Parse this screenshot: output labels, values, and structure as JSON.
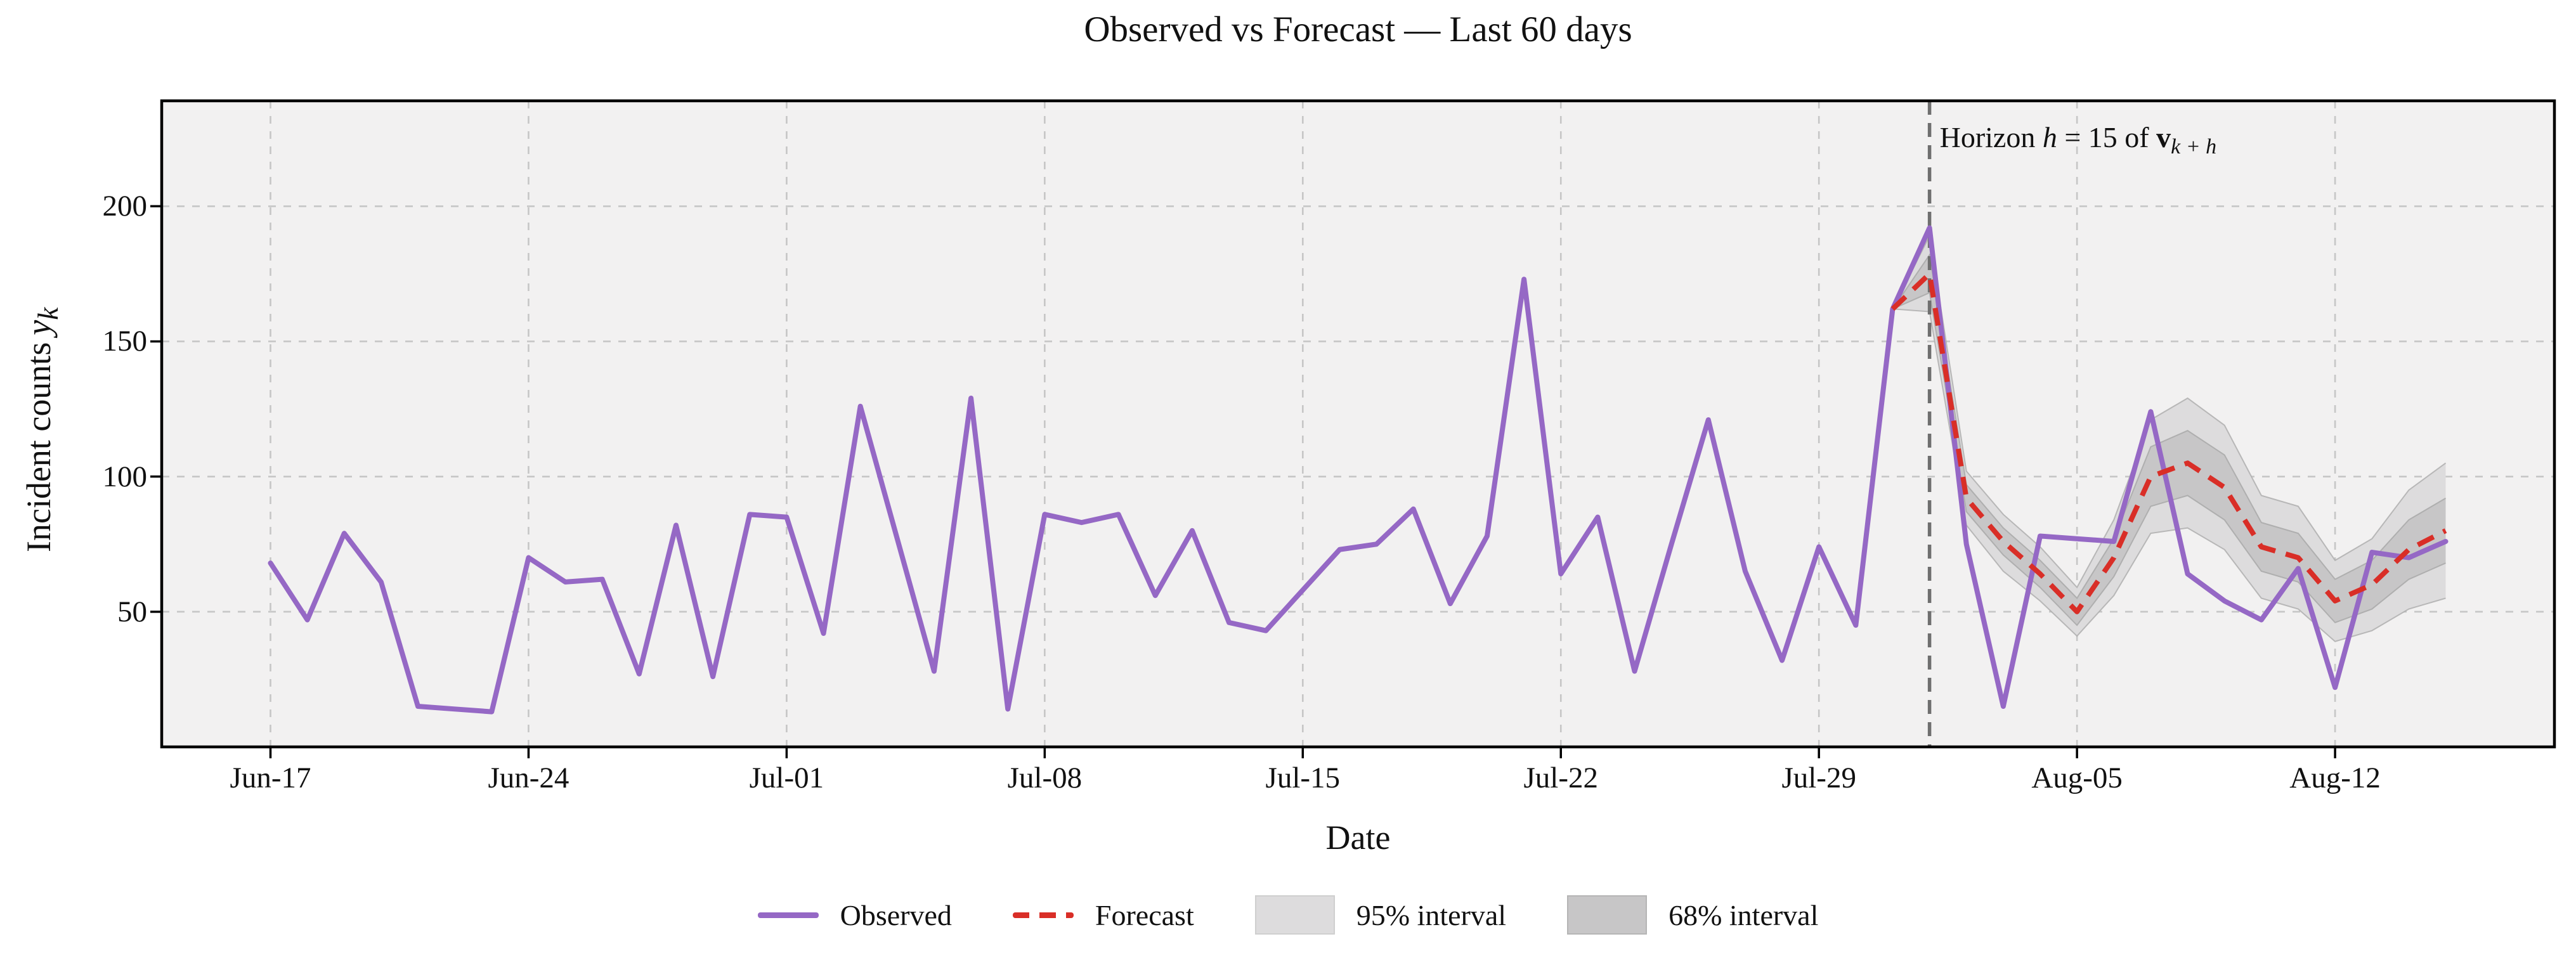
{
  "title": "Observed vs Forecast — Last 60 days",
  "xlabel": "Date",
  "ylabel": {
    "text": "Incident counts",
    "var": "y",
    "sub": "k"
  },
  "annotation": {
    "p1": "Horizon ",
    "p2": "h",
    "p3": " = 15 of ",
    "p4": "v",
    "p5": "k + h"
  },
  "legend": [
    {
      "label": "Observed",
      "swatch": "line-solid"
    },
    {
      "label": "Forecast",
      "swatch": "line-dashed"
    },
    {
      "label": "95% interval",
      "swatch": "patch-light"
    },
    {
      "label": "68% interval",
      "swatch": "patch-dark"
    }
  ],
  "colors": {
    "observed": "#9568c5",
    "forecast": "#d92e27",
    "band95": "#dddcdd",
    "band68": "#c7c6c7",
    "band_edge": "#ababab",
    "vline": "#6f6f6f",
    "grid": "#c6c6c6",
    "plot_bg": "#f2f1f1",
    "spine": "#000000"
  },
  "chart_data": {
    "type": "line",
    "title": "Observed vs Forecast — Last 60 days",
    "xlabel": "Date",
    "ylabel": "Incident counts y_k",
    "grid": true,
    "legend_position": "bottom-center",
    "x_description": "daily index, day 0 = Jun-17, day 59 = Aug-15",
    "xlim_days": [
      -2.95,
      61.95
    ],
    "ylim": [
      0,
      239
    ],
    "yticks": [
      50,
      100,
      150,
      200
    ],
    "xticks": [
      {
        "day": 0,
        "label": "Jun-17"
      },
      {
        "day": 7,
        "label": "Jun-24"
      },
      {
        "day": 14,
        "label": "Jul-01"
      },
      {
        "day": 21,
        "label": "Jul-08"
      },
      {
        "day": 28,
        "label": "Jul-15"
      },
      {
        "day": 35,
        "label": "Jul-22"
      },
      {
        "day": 42,
        "label": "Jul-29"
      },
      {
        "day": 49,
        "label": "Aug-05"
      },
      {
        "day": 56,
        "label": "Aug-12"
      }
    ],
    "vline_day": 45,
    "series": [
      {
        "name": "Observed",
        "start_day": 0,
        "values": [
          68,
          47,
          79,
          61,
          15,
          14,
          13,
          70,
          61,
          62,
          27,
          82,
          26,
          86,
          85,
          42,
          126,
          77,
          28,
          129,
          14,
          86,
          83,
          86,
          56,
          80,
          46,
          43,
          58,
          73,
          75,
          88,
          53,
          78,
          173,
          64,
          85,
          28,
          75,
          121,
          65,
          32,
          74,
          45,
          162,
          192,
          75,
          15,
          78,
          77,
          76,
          124,
          64,
          54,
          47,
          66,
          22,
          72,
          70,
          76
        ]
      },
      {
        "name": "Forecast",
        "start_day": 44,
        "values": [
          162,
          175,
          92,
          76,
          64,
          50,
          70,
          100,
          105,
          96,
          74,
          70,
          54,
          60,
          73,
          80
        ]
      }
    ],
    "bands": {
      "start_day": 44,
      "lo95": [
        162,
        161,
        82,
        65,
        54,
        41,
        56,
        79,
        81,
        73,
        55,
        51,
        39,
        43,
        51,
        55
      ],
      "lo68": [
        162,
        168,
        87,
        71,
        59,
        45,
        63,
        89,
        93,
        84,
        65,
        61,
        46,
        51,
        62,
        68
      ],
      "hi68": [
        162,
        182,
        97,
        81,
        69,
        55,
        77,
        111,
        117,
        108,
        83,
        79,
        62,
        69,
        84,
        92
      ],
      "hi95": [
        162,
        189,
        102,
        86,
        74,
        59,
        84,
        121,
        129,
        119,
        93,
        89,
        69,
        77,
        95,
        105
      ]
    }
  }
}
